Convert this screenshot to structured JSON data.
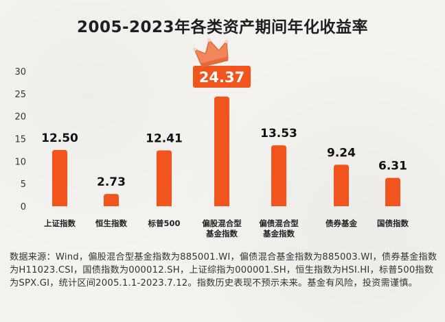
{
  "chart_data": {
    "type": "bar",
    "title": "2005-2023年各类资产期间年化收益率",
    "categories": [
      [
        "上证指数"
      ],
      [
        "恒生指数"
      ],
      [
        "标普500"
      ],
      [
        "偏股混合型",
        "基金指数"
      ],
      [
        "偏债混合型",
        "基金指数"
      ],
      [
        "债券基金"
      ],
      [
        "国债指数"
      ]
    ],
    "values": [
      12.5,
      2.73,
      12.41,
      24.37,
      13.53,
      9.24,
      6.31
    ],
    "value_labels": [
      "12.50",
      "2.73",
      "12.41",
      "24.37",
      "13.53",
      "9.24",
      "6.31"
    ],
    "highlight_index": 3,
    "yticks": [
      "0",
      "5",
      "10",
      "15",
      "20",
      "25",
      "30"
    ],
    "ylim": [
      0,
      30
    ],
    "bar_color": "#f2541d",
    "highlight_color": "#f2541d",
    "crown_color": "#f0865a"
  },
  "footnote": "数据来源：Wind，偏股混合型基金指数为885001.WI，偏债混合基金指数为885003.WI，债券基金指数为H11023.CSI，国债指数为000012.SH，上证综指为000001.SH，恒生指数为HSI.HI，标普500指数为SPX.GI，统计区间2005.1.1-2023.7.12。指数历史表现不预示未来。基金有风险，投资需谨慎。"
}
